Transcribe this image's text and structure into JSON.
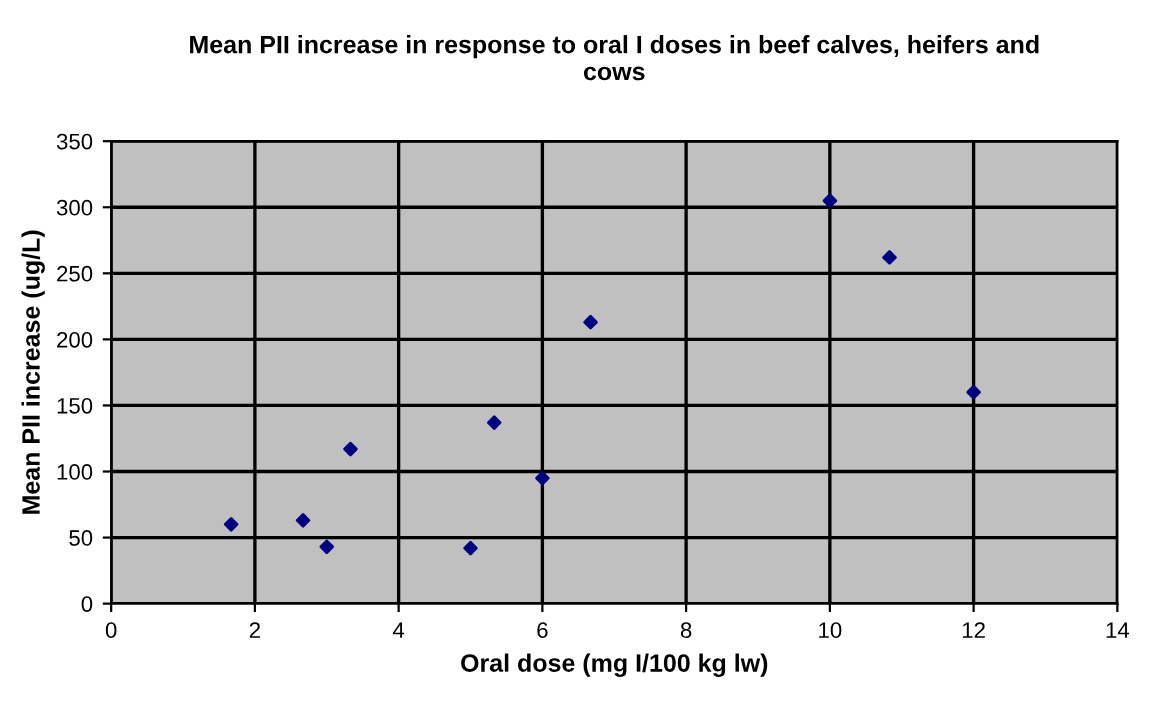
{
  "chart_data": {
    "type": "scatter",
    "title": "Mean PII increase in response to oral I doses in beef calves, heifers and\ncows",
    "xlabel": "Oral dose (mg I/100 kg lw)",
    "ylabel": "Mean PII increase (ug/L)",
    "x": [
      1.67,
      2.67,
      3.0,
      3.33,
      5.0,
      5.33,
      6.0,
      6.67,
      10.0,
      10.83,
      12.0
    ],
    "values": [
      60,
      63,
      43,
      117,
      42,
      137,
      95,
      213,
      305,
      262,
      160
    ],
    "color": "#000080",
    "marker": "diamond",
    "grid": true,
    "xlim": [
      0,
      14
    ],
    "xticks": [
      0,
      2,
      4,
      6,
      8,
      10,
      12,
      14
    ],
    "ylim": [
      0,
      350
    ],
    "yticks": [
      0,
      50,
      100,
      150,
      200,
      250,
      300,
      350
    ]
  }
}
